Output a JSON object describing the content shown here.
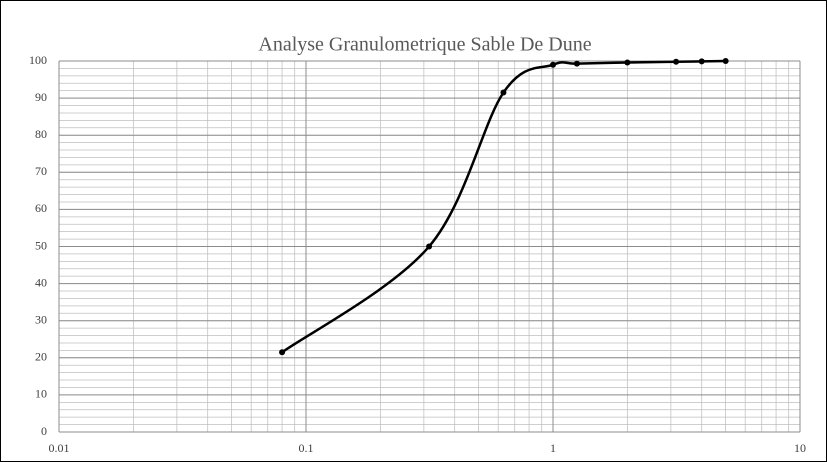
{
  "chart_data": {
    "type": "line",
    "title": "Analyse Granulometrique Sable De Dune",
    "x_scale": "log",
    "grid": true,
    "minor_grid": true,
    "xlim": [
      0.01,
      10
    ],
    "xticks": [
      0.01,
      0.1,
      1,
      10
    ],
    "ylim": [
      0,
      100
    ],
    "yticks": [
      0,
      10,
      20,
      30,
      40,
      50,
      60,
      70,
      80,
      90,
      100
    ],
    "series": [
      {
        "color": "#000000",
        "x": [
          0.08,
          0.315,
          0.63,
          1,
          1.25,
          2,
          3.15,
          4,
          5
        ],
        "values": [
          21.5,
          50,
          91.5,
          99,
          99.3,
          99.6,
          99.8,
          99.9,
          100
        ]
      }
    ]
  }
}
